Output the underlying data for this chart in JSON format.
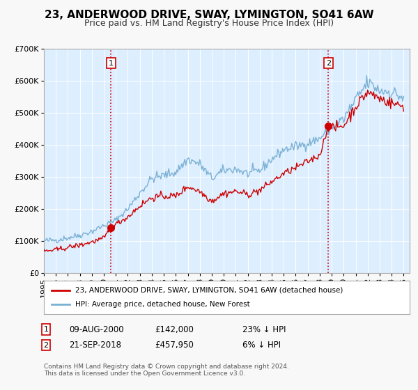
{
  "title": "23, ANDERWOOD DRIVE, SWAY, LYMINGTON, SO41 6AW",
  "subtitle": "Price paid vs. HM Land Registry's House Price Index (HPI)",
  "legend_label_red": "23, ANDERWOOD DRIVE, SWAY, LYMINGTON, SO41 6AW (detached house)",
  "legend_label_blue": "HPI: Average price, detached house, New Forest",
  "sale1_date": "09-AUG-2000",
  "sale1_price": "£142,000",
  "sale1_hpi": "23% ↓ HPI",
  "sale1_year": 2000.6,
  "sale1_value": 142000,
  "sale2_date": "21-SEP-2018",
  "sale2_price": "£457,950",
  "sale2_hpi": "6% ↓ HPI",
  "sale2_year": 2018.72,
  "sale2_value": 457950,
  "footer": "Contains HM Land Registry data © Crown copyright and database right 2024.\nThis data is licensed under the Open Government Licence v3.0.",
  "ylim": [
    0,
    700000
  ],
  "xlim_start": 1995,
  "xlim_end": 2025.5,
  "plot_bg_color": "#ddeeff",
  "fig_bg_color": "#f8f8f8",
  "red_color": "#cc0000",
  "blue_color": "#7ab0d4",
  "title_fontsize": 11,
  "subtitle_fontsize": 9,
  "axis_fontsize": 8,
  "hpi_anchors": {
    "1995": 100000,
    "1996": 103000,
    "1997": 110000,
    "1998": 118000,
    "1999": 130000,
    "2000": 148000,
    "2001": 165000,
    "2002": 200000,
    "2003": 250000,
    "2004": 295000,
    "2005": 305000,
    "2006": 315000,
    "2007": 355000,
    "2008": 340000,
    "2009": 295000,
    "2010": 320000,
    "2011": 325000,
    "2012": 310000,
    "2013": 320000,
    "2014": 355000,
    "2015": 385000,
    "2016": 395000,
    "2017": 405000,
    "2018": 420000,
    "2019": 455000,
    "2020": 480000,
    "2021": 540000,
    "2022": 595000,
    "2023": 570000,
    "2024": 565000,
    "2025": 545000
  },
  "red_anchors": {
    "1995": 68000,
    "1996": 72000,
    "1997": 80000,
    "1998": 87000,
    "1999": 97000,
    "2000": 108000,
    "2000.6": 142000,
    "2001": 152000,
    "2002": 175000,
    "2003": 210000,
    "2004": 235000,
    "2005": 240000,
    "2006": 240000,
    "2007": 270000,
    "2008": 255000,
    "2009": 225000,
    "2010": 248000,
    "2011": 255000,
    "2012": 245000,
    "2013": 258000,
    "2014": 285000,
    "2015": 310000,
    "2016": 328000,
    "2017": 348000,
    "2018": 368000,
    "2018.72": 457950,
    "2019": 450000,
    "2020": 460000,
    "2021": 520000,
    "2022": 565000,
    "2023": 545000,
    "2024": 530000,
    "2025": 520000
  }
}
